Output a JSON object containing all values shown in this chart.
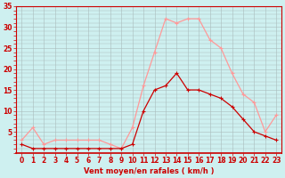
{
  "hours": [
    0,
    1,
    2,
    3,
    4,
    5,
    6,
    7,
    8,
    9,
    10,
    11,
    12,
    13,
    14,
    15,
    16,
    17,
    18,
    19,
    20,
    21,
    22,
    23
  ],
  "rafales": [
    3,
    6,
    2,
    3,
    3,
    3,
    3,
    3,
    2,
    1,
    6,
    16,
    24,
    32,
    31,
    32,
    32,
    27,
    25,
    19,
    14,
    12,
    5,
    9
  ],
  "vent_moyen": [
    2,
    1,
    1,
    1,
    1,
    1,
    1,
    1,
    1,
    1,
    2,
    10,
    15,
    16,
    19,
    15,
    15,
    14,
    13,
    11,
    8,
    5,
    4,
    3
  ],
  "xlabel": "Vent moyen/en rafales ( km/h )",
  "bg_color": "#cef0f0",
  "grid_color": "#aabbbb",
  "rafales_color": "#ff9999",
  "vent_color": "#cc0000",
  "tick_color": "#cc0000",
  "ylim": [
    0,
    35
  ],
  "yticks": [
    5,
    10,
    15,
    20,
    25,
    30,
    35
  ],
  "xlabel_fontsize": 6.0,
  "tick_fontsize": 5.5
}
